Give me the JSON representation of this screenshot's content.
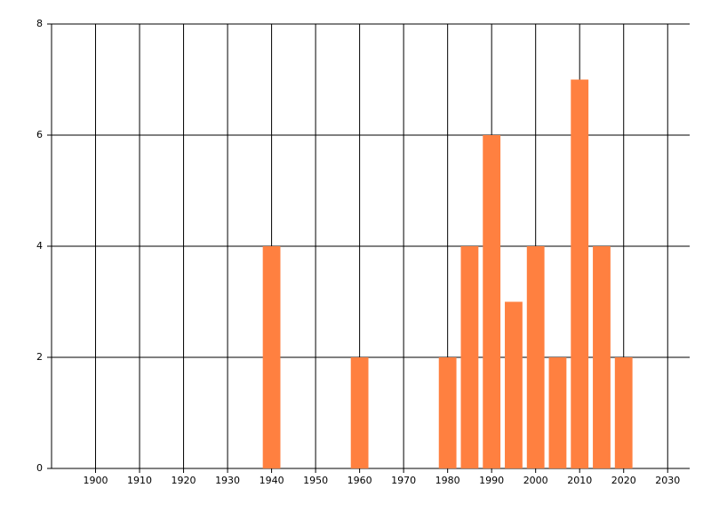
{
  "chart_data": {
    "type": "bar",
    "x": [
      1940,
      1960,
      1980,
      1985,
      1990,
      1995,
      2000,
      2005,
      2010,
      2015,
      2020
    ],
    "values": [
      4,
      2,
      2,
      4,
      6,
      3,
      4,
      2,
      7,
      4,
      2
    ],
    "color": "#ff8040",
    "xlim": [
      1890,
      2035
    ],
    "xticks": [
      1900,
      1910,
      1920,
      1930,
      1940,
      1950,
      1960,
      1970,
      1980,
      1990,
      2000,
      2010,
      2020,
      2030
    ],
    "ylim": [
      0,
      8
    ],
    "yticks": [
      0,
      2,
      4,
      6,
      8
    ],
    "grid": true
  }
}
